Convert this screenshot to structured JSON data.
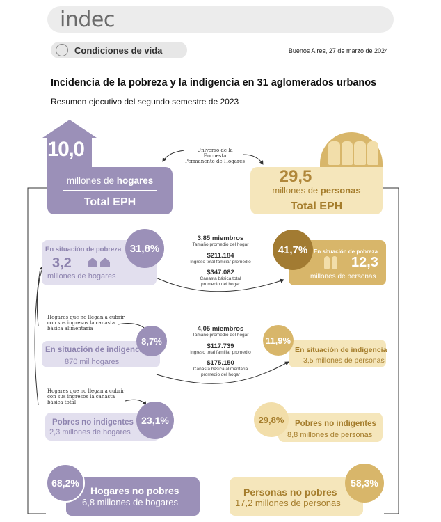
{
  "header": {
    "logo": "indec",
    "section": "Condiciones de vida",
    "date": "Buenos Aires, 27 de marzo de 2024"
  },
  "title": "Incidencia de la pobreza y la indigencia en 31 aglomerados urbanos",
  "subtitle": "Resumen ejecutivo del segundo semestre de 2023",
  "universe": {
    "line1": "Universo de la Encuesta",
    "line2": "Permanente de Hogares"
  },
  "households": {
    "total_value": "10,0",
    "total_unit_prefix": "millones de ",
    "total_unit_bold": "hogares",
    "total_label": "Total EPH",
    "poverty": {
      "label": "En situación de pobreza",
      "pct": "31,8%",
      "value": "3,2",
      "unit": "millones de hogares"
    },
    "note_indigence": "Hogares que no llegan a cubrir con sus ingresos la canasta básica alimentaria",
    "indigence": {
      "label": "En situación de indigencia",
      "pct": "8,7%",
      "value": "870 mil hogares"
    },
    "note_poverty": "Hogares que no llegan a cubrir con sus ingresos la canasta básica total",
    "non_indigent": {
      "label": "Pobres no indigentes",
      "pct": "23,1%",
      "value": "2,3 millones de hogares"
    },
    "non_poor": {
      "label": "Hogares no pobres",
      "pct": "68,2%",
      "value": "6,8 millones de hogares"
    }
  },
  "persons": {
    "total_value": "29,5",
    "total_unit_prefix": "millones de ",
    "total_unit_bold": "personas",
    "total_label": "Total EPH",
    "poverty": {
      "label": "En situación de pobreza",
      "pct": "41,7%",
      "value": "12,3",
      "unit": "millones de personas"
    },
    "indigence": {
      "label": "En situación de indigencia",
      "pct": "11,9%",
      "value": "3,5 millones de personas"
    },
    "non_indigent": {
      "label": "Pobres no indigentes",
      "pct": "29,8%",
      "value": "8,8 millones de personas"
    },
    "non_poor": {
      "label": "Personas no pobres",
      "pct": "58,3%",
      "value": "17,2 millones de personas"
    }
  },
  "middle_poverty": {
    "members": "3,85 miembros",
    "members_label": "Tamaño promedio del hogar",
    "income": "$211.184",
    "income_label": "Ingreso total familiar promedio",
    "basket": "$347.082",
    "basket_label1": "Canasta básica total",
    "basket_label2": "promedio del hogar"
  },
  "middle_indigence": {
    "members": "4,05 miembros",
    "members_label": "Tamaño promedio del hogar",
    "income": "$117.739",
    "income_label": "Ingreso total familiar promedio",
    "basket": "$175.150",
    "basket_label1": "Canasta básica alimentaria",
    "basket_label2": "promedio del hogar"
  },
  "colors": {
    "purple_dark": "#9b90b8",
    "purple_light": "#e2dfee",
    "gold_dark": "#d8b66a",
    "gold_light": "#f5e6bb"
  }
}
